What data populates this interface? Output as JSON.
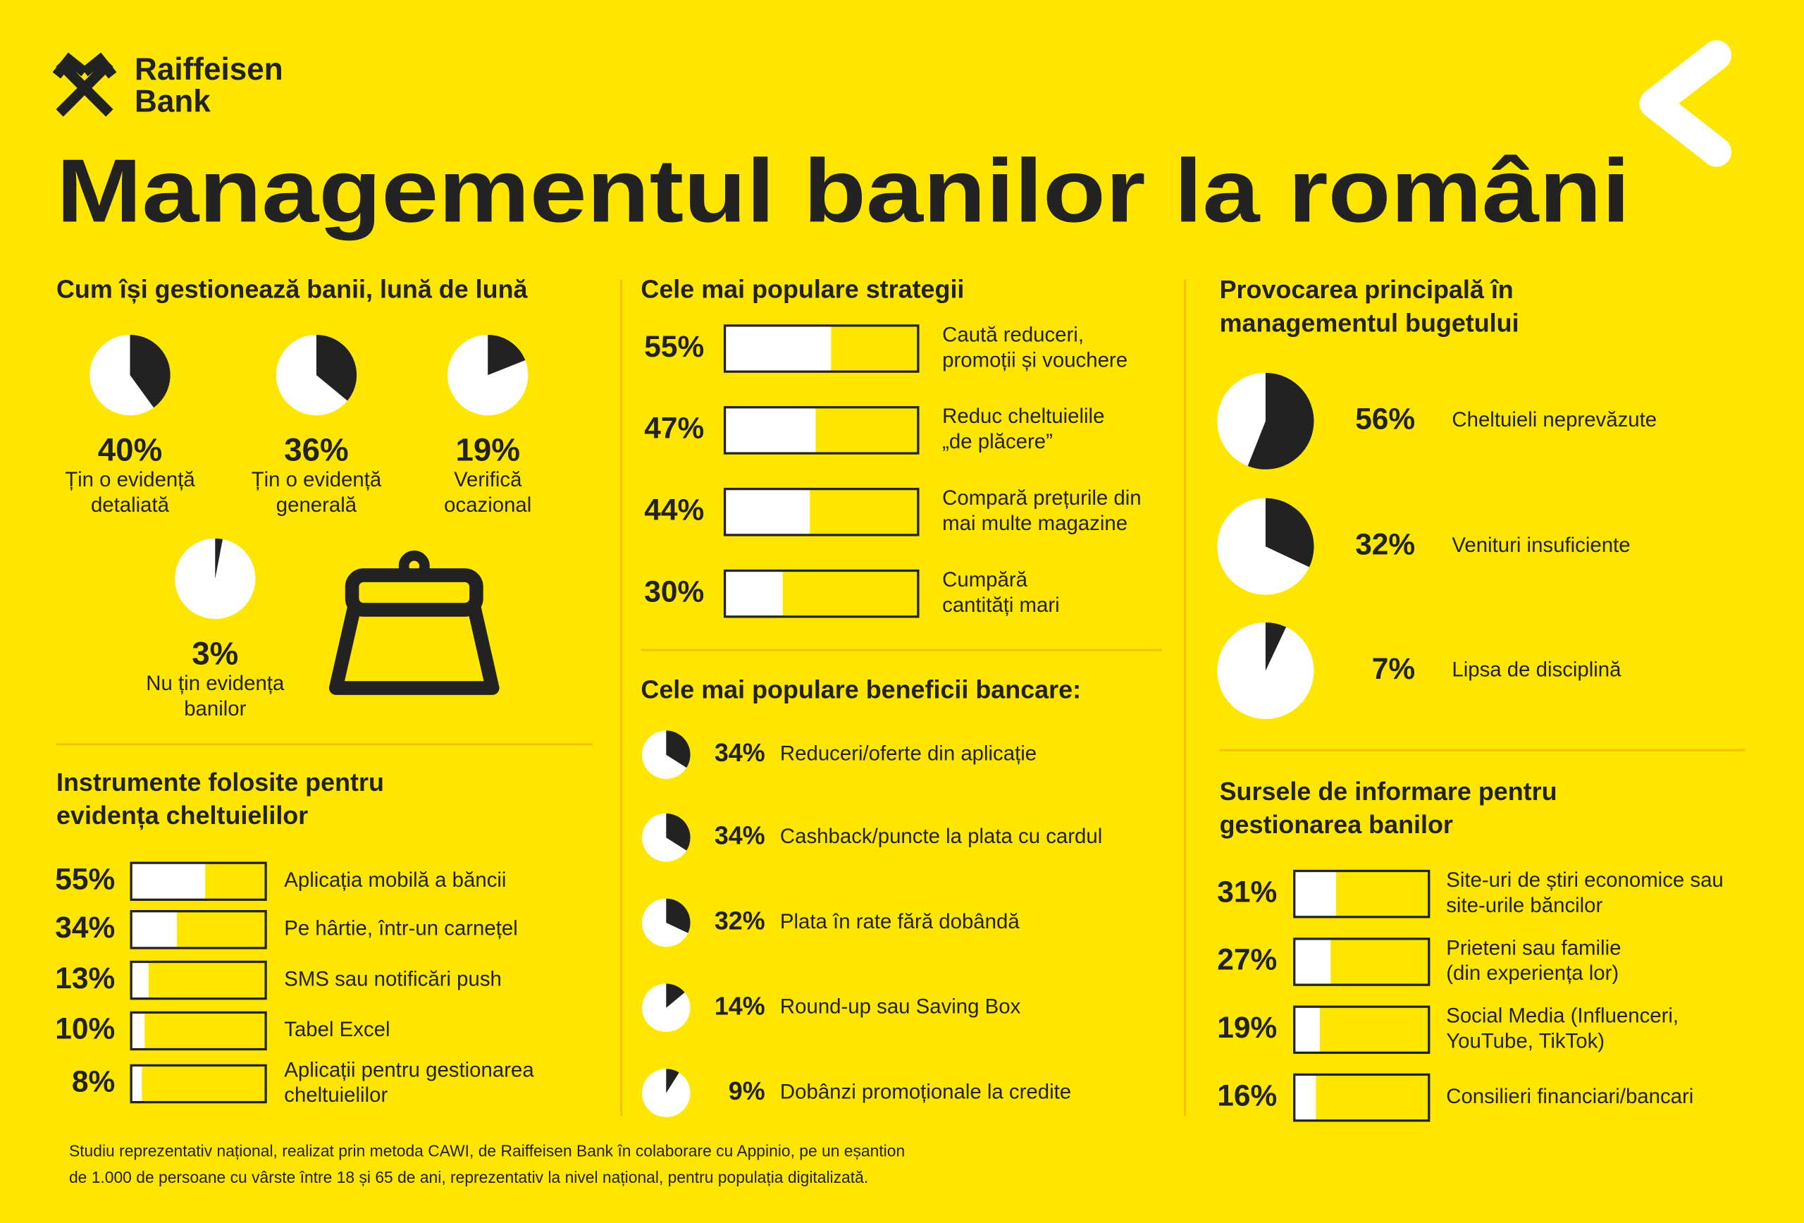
{
  "header": {
    "brand": [
      "Raiffeisen",
      "Bank"
    ],
    "title": "Managementul banilor la români"
  },
  "monthly": {
    "title": [
      "Cum își gestionează banii, lună de lună"
    ],
    "items": [
      {
        "value": 40,
        "label": "40%",
        "text": [
          "Țin o evidență",
          "detaliată"
        ]
      },
      {
        "value": 36,
        "label": "36%",
        "text": [
          "Țin o evidență",
          "generală"
        ]
      },
      {
        "value": 19,
        "label": "19%",
        "text": [
          "Verifică",
          "ocazional"
        ]
      },
      {
        "value": 3,
        "label": "3%",
        "text": [
          "Nu țin evidența",
          "banilor"
        ]
      }
    ]
  },
  "tools": {
    "title": [
      "Instrumente folosite pentru",
      "evidența cheltuielilor"
    ],
    "items": [
      {
        "value": 55,
        "label": "55%",
        "text": [
          "Aplicația mobilă a băncii"
        ]
      },
      {
        "value": 34,
        "label": "34%",
        "text": [
          "Pe hârtie, într-un carnețel"
        ]
      },
      {
        "value": 13,
        "label": "13%",
        "text": [
          "SMS sau notificări push"
        ]
      },
      {
        "value": 10,
        "label": "10%",
        "text": [
          "Tabel Excel"
        ]
      },
      {
        "value": 8,
        "label": "8%",
        "text": [
          "Aplicații pentru gestionarea",
          "cheltuielilor"
        ]
      }
    ]
  },
  "strategies": {
    "title": [
      "Cele mai populare strategii"
    ],
    "items": [
      {
        "value": 55,
        "label": "55%",
        "text": [
          "Caută reduceri,",
          "promoții și vouchere"
        ]
      },
      {
        "value": 47,
        "label": "47%",
        "text": [
          "Reduc cheltuielile",
          "„de plăcere”"
        ]
      },
      {
        "value": 44,
        "label": "44%",
        "text": [
          "Compară prețurile din",
          "mai multe magazine"
        ]
      },
      {
        "value": 30,
        "label": "30%",
        "text": [
          "Cumpără",
          "cantități mari"
        ]
      }
    ]
  },
  "benefits": {
    "title": [
      "Cele mai populare beneficii bancare:"
    ],
    "items": [
      {
        "value": 34,
        "label": "34%",
        "text": [
          "Reduceri/oferte din aplicație"
        ]
      },
      {
        "value": 34,
        "label": "34%",
        "text": [
          "Cashback/puncte la plata cu cardul"
        ]
      },
      {
        "value": 32,
        "label": "32%",
        "text": [
          "Plata în rate fără dobândă"
        ]
      },
      {
        "value": 14,
        "label": "14%",
        "text": [
          "Round-up sau Saving Box"
        ]
      },
      {
        "value": 9,
        "label": "9%",
        "text": [
          "Dobânzi promoționale la credite"
        ]
      }
    ]
  },
  "challenge": {
    "title": [
      "Provocarea principală în",
      "managementul bugetului"
    ],
    "items": [
      {
        "value": 56,
        "label": "56%",
        "text": [
          "Cheltuieli neprevăzute"
        ]
      },
      {
        "value": 32,
        "label": "32%",
        "text": [
          "Venituri insuficiente"
        ]
      },
      {
        "value": 7,
        "label": "7%",
        "text": [
          "Lipsa de disciplină"
        ]
      }
    ]
  },
  "sources": {
    "title": [
      "Sursele de informare pentru",
      "gestionarea banilor"
    ],
    "items": [
      {
        "value": 31,
        "label": "31%",
        "text": [
          "Site-uri de știri economice sau",
          "site-urile băncilor"
        ]
      },
      {
        "value": 27,
        "label": "27%",
        "text": [
          "Prieteni sau familie",
          "(din experiența lor)"
        ]
      },
      {
        "value": 19,
        "label": "19%",
        "text": [
          "Social Media (Influenceri,",
          "YouTube, TikTok)"
        ]
      },
      {
        "value": 16,
        "label": "16%",
        "text": [
          "Consilieri financiari/bancari"
        ]
      }
    ]
  },
  "footnote": [
    "Studiu reprezentativ național, realizat prin metoda CAWI, de Raiffeisen Bank în colaborare cu Appinio, pe un eșantion",
    "de 1.000 de persoane cu vârste între 18 și 65 de ani, reprezentativ la nivel național, pentru populația digitalizată."
  ]
}
